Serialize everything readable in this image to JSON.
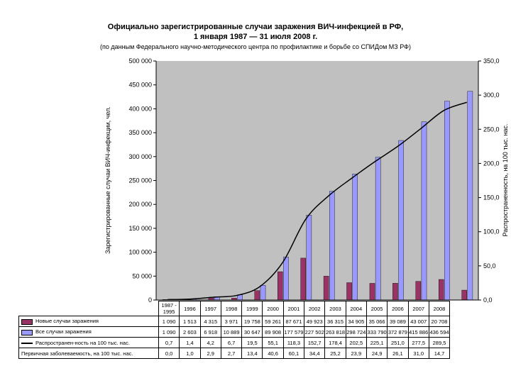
{
  "chart_data": {
    "type": "bar",
    "title_line1": "Официально зарегистрированные случаи заражения ВИЧ-инфекцией в РФ,",
    "title_line2": "1 января 1987 — 31 июля 2008 г.",
    "subtitle": "(по данным Федерального научно-методического центра по профилактике и борьбе со СПИДом МЗ РФ)",
    "ylabel_left": "Зарегистрированные случаи ВИЧ-инфекции, чел.",
    "ylabel_right": "Распространенность, на 100 тыс. нас.",
    "y_left_range": [
      0,
      500000
    ],
    "y_left_ticks": [
      "0",
      "50 000",
      "100 000",
      "150 000",
      "200 000",
      "250 000",
      "300 000",
      "350 000",
      "400 000",
      "450 000",
      "500 000"
    ],
    "y_right_range": [
      0,
      350
    ],
    "y_right_ticks": [
      "0,0",
      "50,0",
      "100,0",
      "150,0",
      "200,0",
      "250,0",
      "300,0",
      "350,0"
    ],
    "grid": false,
    "categories": [
      "1987 - 1995",
      "1996",
      "1997",
      "1998",
      "1999",
      "2000",
      "2001",
      "2002",
      "2003",
      "2004",
      "2005",
      "2006",
      "2007",
      "2008"
    ],
    "series": [
      {
        "name": "Новые случаи заражения",
        "kind": "bar",
        "color": "#993366",
        "values": [
          1090,
          1513,
          4315,
          3971,
          19758,
          59261,
          87671,
          49923,
          36315,
          34905,
          35066,
          39089,
          43007,
          20708
        ],
        "labels": [
          "1 090",
          "1 513",
          "4 315",
          "3 971",
          "19 758",
          "59 261",
          "87 671",
          "49 923",
          "36 315",
          "34 905",
          "35 066",
          "39 089",
          "43 007",
          "20 708"
        ]
      },
      {
        "name": "Все случаи заражения",
        "kind": "bar",
        "color": "#9999ff",
        "values": [
          1090,
          2603,
          6918,
          10889,
          30647,
          89908,
          177579,
          227502,
          263818,
          298724,
          333790,
          372879,
          415886,
          436594
        ],
        "labels": [
          "1 090",
          "2 603",
          "6 918",
          "10 889",
          "30 647",
          "89 908",
          "177 579",
          "227 502",
          "263 818",
          "298 724",
          "333 790",
          "372 879",
          "415 886",
          "436 594"
        ]
      },
      {
        "name": "Распространен-ность на 100 тыс. нас.",
        "kind": "line",
        "axis": "right",
        "color": "#000000",
        "values": [
          0.7,
          1.4,
          4.2,
          6.7,
          19.5,
          55.1,
          118.3,
          152.7,
          178.4,
          202.5,
          225.1,
          251.0,
          277.5,
          289.5
        ],
        "labels": [
          "0,7",
          "1,4",
          "4,2",
          "6,7",
          "19,5",
          "55,1",
          "118,3",
          "152,7",
          "178,4",
          "202,5",
          "225,1",
          "251,0",
          "277,5",
          "289,5"
        ]
      },
      {
        "name": "Первичная заболеваемость, на 100 тыс. нас.",
        "kind": "table",
        "values": [
          0.0,
          1.0,
          2.9,
          2.7,
          13.4,
          40.6,
          60.1,
          34.4,
          25.2,
          23.9,
          24.9,
          26.1,
          31.0,
          14.7
        ],
        "labels": [
          "0,0",
          "1,0",
          "2,9",
          "2,7",
          "13,4",
          "40,6",
          "60,1",
          "34,4",
          "25,2",
          "23,9",
          "24,9",
          "26,1",
          "31,0",
          "14,7"
        ]
      }
    ]
  }
}
